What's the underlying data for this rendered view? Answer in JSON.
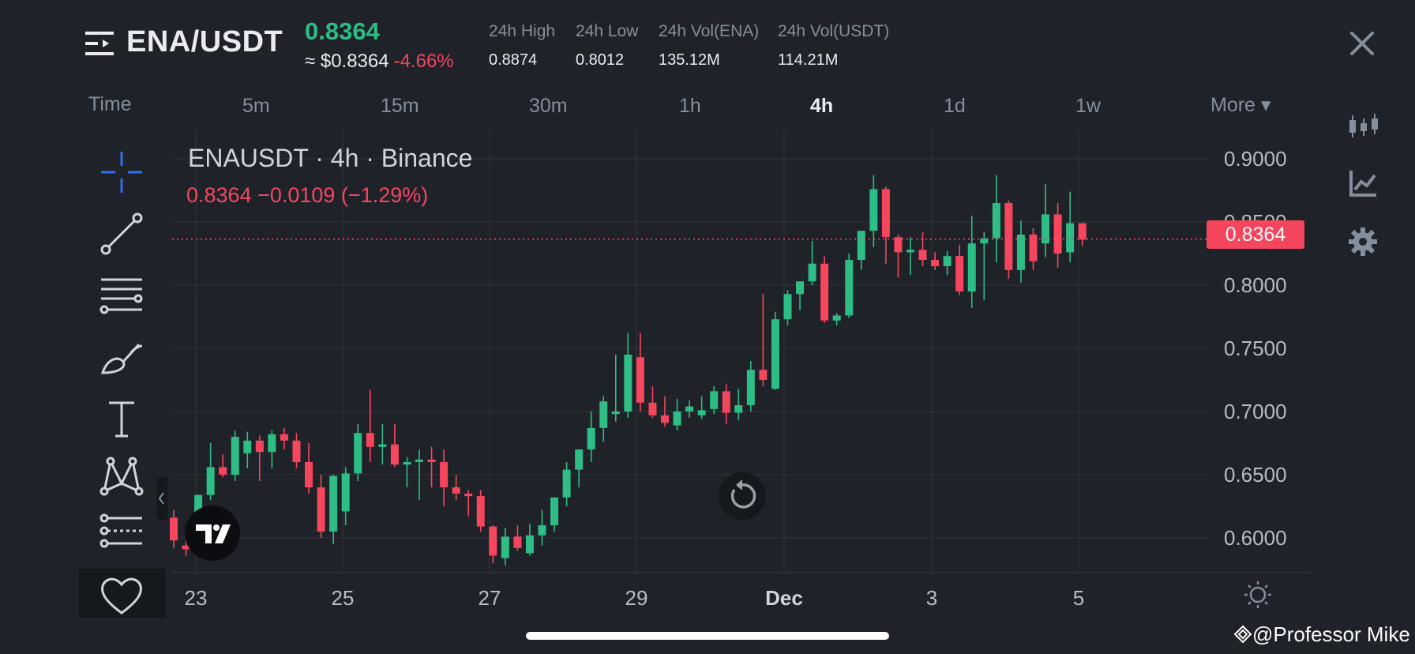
{
  "header": {
    "pair": "ENA/USDT",
    "last_price": "0.8364",
    "approx_price": "≈ $0.8364",
    "change_pct": "-4.66%",
    "stats": [
      {
        "label": "24h High",
        "value": "0.8874"
      },
      {
        "label": "24h Low",
        "value": "0.8012"
      },
      {
        "label": "24h Vol(ENA)",
        "value": "135.12M"
      },
      {
        "label": "24h Vol(USDT)",
        "value": "114.21M"
      }
    ]
  },
  "intervals": {
    "time_label": "Time",
    "items": [
      "5m",
      "15m",
      "30m",
      "1h",
      "4h",
      "1d",
      "1w"
    ],
    "active": "4h",
    "more_label": "More ▾"
  },
  "toolbar": {
    "tools": [
      "crosshair-icon",
      "trend-line-icon",
      "horizontal-lines-icon",
      "brush-icon",
      "text-icon",
      "pattern-icon",
      "forecast-icon",
      "favorite-icon"
    ]
  },
  "side_icons": [
    "candle-type-icon",
    "indicators-icon",
    "settings-icon"
  ],
  "chart_data": {
    "type": "candlestick",
    "title": "ENAUSDT · 4h · Binance",
    "legend_change": "0.8364  −0.0109 (−1.29%)",
    "last_price_label": "0.8364",
    "last_price": 0.8364,
    "ylim": [
      0.5725,
      0.9225
    ],
    "y_ticks": [
      "0.9000",
      "0.8500",
      "0.8000",
      "0.7500",
      "0.7000",
      "0.6500",
      "0.6000"
    ],
    "y_tick_values": [
      0.9,
      0.85,
      0.8,
      0.75,
      0.7,
      0.65,
      0.6
    ],
    "x_ticks": [
      "23",
      "25",
      "27",
      "29",
      "Dec",
      "3",
      "5"
    ],
    "up_color": "#2ebd85",
    "down_color": "#f6465d",
    "grid": true,
    "candles_ohlc": [
      [
        0.616,
        0.622,
        0.592,
        0.598
      ],
      [
        0.594,
        0.598,
        0.586,
        0.591
      ],
      [
        0.61,
        0.634,
        0.6,
        0.634
      ],
      [
        0.634,
        0.675,
        0.63,
        0.656
      ],
      [
        0.656,
        0.666,
        0.648,
        0.65
      ],
      [
        0.65,
        0.685,
        0.645,
        0.68
      ],
      [
        0.667,
        0.684,
        0.655,
        0.677
      ],
      [
        0.677,
        0.681,
        0.645,
        0.668
      ],
      [
        0.668,
        0.685,
        0.655,
        0.682
      ],
      [
        0.682,
        0.687,
        0.67,
        0.677
      ],
      [
        0.677,
        0.683,
        0.655,
        0.66
      ],
      [
        0.66,
        0.675,
        0.635,
        0.64
      ],
      [
        0.64,
        0.65,
        0.6,
        0.605
      ],
      [
        0.605,
        0.65,
        0.595,
        0.649
      ],
      [
        0.621,
        0.656,
        0.61,
        0.651
      ],
      [
        0.651,
        0.69,
        0.645,
        0.683
      ],
      [
        0.683,
        0.717,
        0.66,
        0.672
      ],
      [
        0.672,
        0.69,
        0.658,
        0.674
      ],
      [
        0.674,
        0.69,
        0.656,
        0.658
      ],
      [
        0.658,
        0.664,
        0.64,
        0.66
      ],
      [
        0.66,
        0.67,
        0.63,
        0.662
      ],
      [
        0.662,
        0.672,
        0.64,
        0.66
      ],
      [
        0.66,
        0.67,
        0.625,
        0.64
      ],
      [
        0.64,
        0.65,
        0.63,
        0.635
      ],
      [
        0.635,
        0.638,
        0.617,
        0.633
      ],
      [
        0.633,
        0.638,
        0.605,
        0.609
      ],
      [
        0.609,
        0.61,
        0.58,
        0.586
      ],
      [
        0.584,
        0.608,
        0.578,
        0.601
      ],
      [
        0.601,
        0.61,
        0.59,
        0.592
      ],
      [
        0.588,
        0.611,
        0.586,
        0.602
      ],
      [
        0.602,
        0.622,
        0.594,
        0.61
      ],
      [
        0.61,
        0.63,
        0.605,
        0.632
      ],
      [
        0.632,
        0.66,
        0.625,
        0.654
      ],
      [
        0.654,
        0.662,
        0.64,
        0.67
      ],
      [
        0.67,
        0.7,
        0.66,
        0.687
      ],
      [
        0.687,
        0.712,
        0.676,
        0.708
      ],
      [
        0.698,
        0.745,
        0.692,
        0.7
      ],
      [
        0.7,
        0.762,
        0.695,
        0.745
      ],
      [
        0.743,
        0.762,
        0.7,
        0.707
      ],
      [
        0.707,
        0.72,
        0.695,
        0.697
      ],
      [
        0.697,
        0.712,
        0.688,
        0.691
      ],
      [
        0.689,
        0.71,
        0.685,
        0.7
      ],
      [
        0.7,
        0.709,
        0.695,
        0.704
      ],
      [
        0.697,
        0.712,
        0.694,
        0.701
      ],
      [
        0.702,
        0.72,
        0.698,
        0.716
      ],
      [
        0.716,
        0.722,
        0.69,
        0.699
      ],
      [
        0.699,
        0.718,
        0.693,
        0.705
      ],
      [
        0.705,
        0.74,
        0.7,
        0.733
      ],
      [
        0.733,
        0.793,
        0.72,
        0.725
      ],
      [
        0.718,
        0.779,
        0.717,
        0.773
      ],
      [
        0.773,
        0.796,
        0.768,
        0.793
      ],
      [
        0.793,
        0.8,
        0.78,
        0.803
      ],
      [
        0.803,
        0.835,
        0.8,
        0.817
      ],
      [
        0.817,
        0.823,
        0.77,
        0.772
      ],
      [
        0.772,
        0.778,
        0.768,
        0.776
      ],
      [
        0.776,
        0.825,
        0.774,
        0.82
      ],
      [
        0.82,
        0.842,
        0.812,
        0.843
      ],
      [
        0.843,
        0.887,
        0.83,
        0.876
      ],
      [
        0.876,
        0.878,
        0.817,
        0.838
      ],
      [
        0.838,
        0.84,
        0.806,
        0.826
      ],
      [
        0.826,
        0.838,
        0.808,
        0.828
      ],
      [
        0.828,
        0.842,
        0.815,
        0.82
      ],
      [
        0.82,
        0.826,
        0.812,
        0.815
      ],
      [
        0.815,
        0.827,
        0.808,
        0.823
      ],
      [
        0.823,
        0.832,
        0.792,
        0.795
      ],
      [
        0.795,
        0.855,
        0.782,
        0.833
      ],
      [
        0.833,
        0.842,
        0.788,
        0.837
      ],
      [
        0.837,
        0.887,
        0.818,
        0.865
      ],
      [
        0.865,
        0.867,
        0.805,
        0.812
      ],
      [
        0.812,
        0.851,
        0.802,
        0.84
      ],
      [
        0.84,
        0.845,
        0.812,
        0.819
      ],
      [
        0.833,
        0.88,
        0.822,
        0.856
      ],
      [
        0.856,
        0.865,
        0.814,
        0.825
      ],
      [
        0.826,
        0.874,
        0.818,
        0.849
      ],
      [
        0.849,
        0.849,
        0.831,
        0.836
      ]
    ]
  },
  "watermark": "@Professor Mike"
}
